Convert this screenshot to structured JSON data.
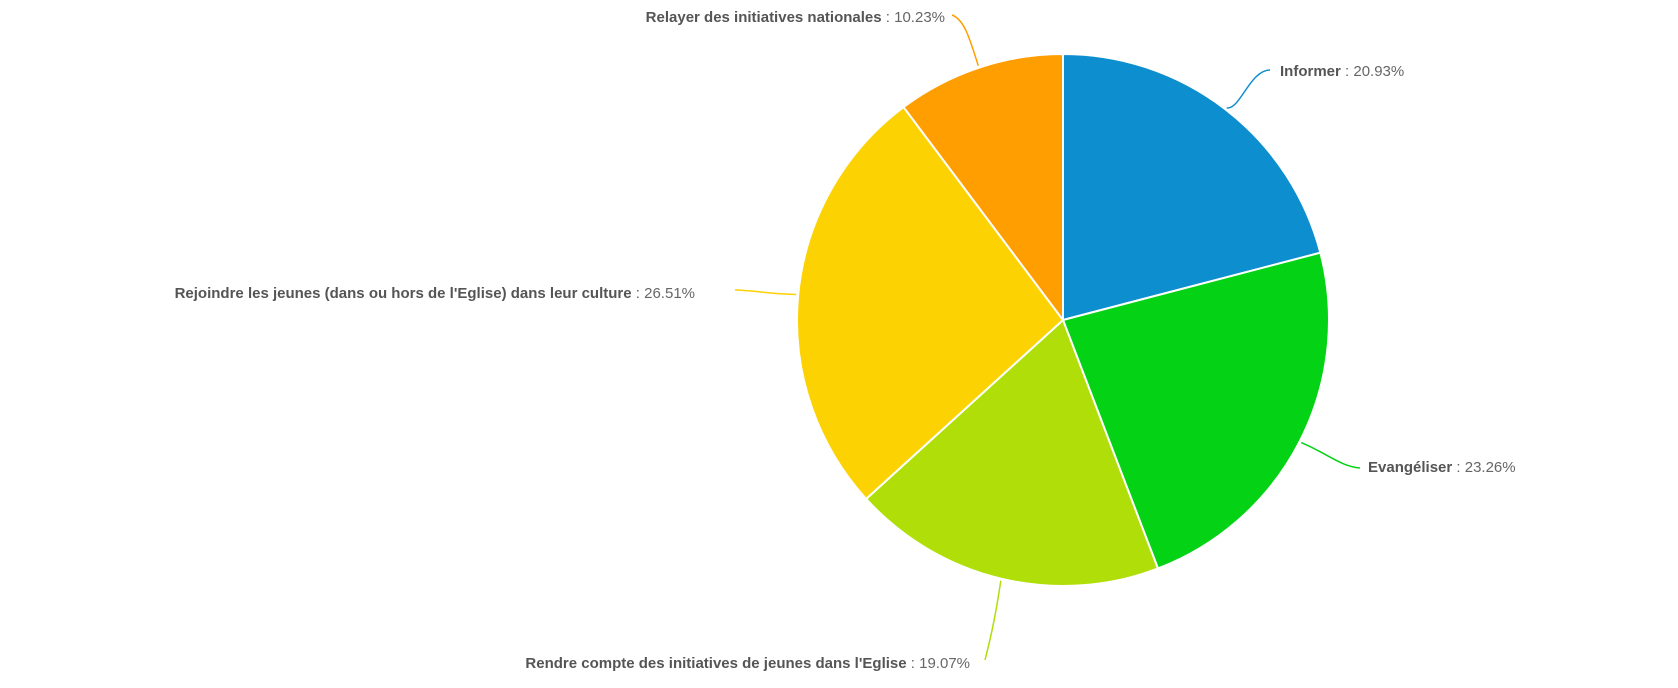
{
  "chart_data": {
    "type": "pie",
    "title": "",
    "legend": "none",
    "value_suffix": "%",
    "separator": " : ",
    "slices": [
      {
        "label": "Informer",
        "value": 20.93,
        "display": "20.93%",
        "color": "#0d8ecf"
      },
      {
        "label": "Evangéliser",
        "value": 23.26,
        "display": "23.26%",
        "color": "#04d215"
      },
      {
        "label": "Rendre compte des initiatives de jeunes dans l'Eglise",
        "value": 19.07,
        "display": "19.07%",
        "color": "#b0de09"
      },
      {
        "label": "Rejoindre les jeunes (dans ou hors de l'Eglise) dans leur culture",
        "value": 26.51,
        "display": "26.51%",
        "color": "#fcd202"
      },
      {
        "label": "Relayer des initiatives nationales",
        "value": 10.23,
        "display": "10.23%",
        "color": "#ff9e01"
      }
    ]
  }
}
